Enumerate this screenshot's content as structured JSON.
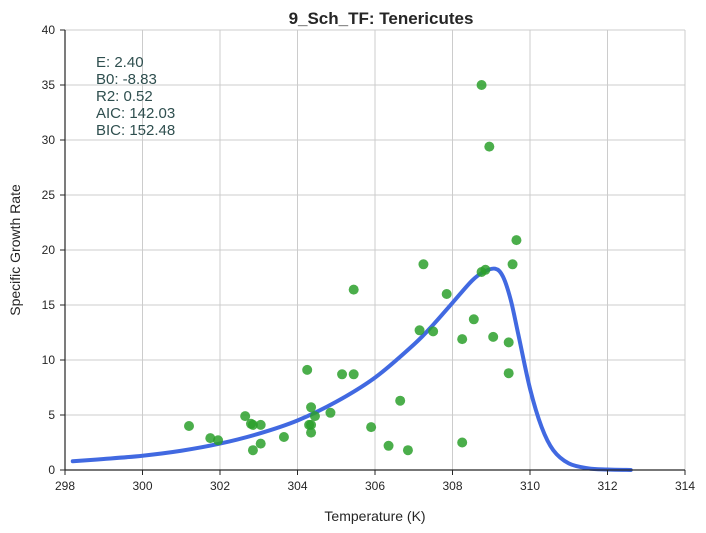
{
  "chart_data": {
    "type": "scatter",
    "title": "9_Sch_TF: Tenericutes",
    "xlabel": "Temperature (K)",
    "ylabel": "Specific Growth Rate",
    "xlim": [
      298,
      314
    ],
    "ylim": [
      0,
      40
    ],
    "xticks": [
      298,
      300,
      302,
      304,
      306,
      308,
      310,
      312,
      314
    ],
    "yticks": [
      0,
      5,
      10,
      15,
      20,
      25,
      30,
      35,
      40
    ],
    "grid": true,
    "stats": [
      "E:  2.40",
      "B0:  -8.83",
      "R2:  0.52",
      "AIC: 142.03",
      "BIC: 152.48"
    ],
    "colors": {
      "points": "#2ca02c",
      "curve": "#4169e1",
      "stats_text": "#2f4f4f",
      "grid": "#cccccc"
    },
    "series": [
      {
        "kind": "points",
        "x": [
          301.2,
          301.75,
          301.95,
          302.65,
          302.8,
          302.85,
          302.85,
          303.05,
          303.05,
          303.65,
          304.25,
          304.3,
          304.35,
          304.35,
          304.35,
          304.45,
          304.85,
          305.15,
          305.45,
          305.45,
          305.9,
          306.35,
          306.65,
          306.85,
          307.15,
          307.25,
          307.5,
          307.85,
          308.25,
          308.25,
          308.55,
          308.75,
          308.75,
          308.85,
          308.95,
          309.05,
          309.45,
          309.45,
          309.55,
          309.65
        ],
        "y": [
          4.0,
          2.9,
          2.7,
          4.9,
          4.2,
          4.1,
          1.8,
          4.1,
          2.4,
          3.0,
          9.1,
          4.1,
          5.7,
          4.1,
          3.4,
          4.9,
          5.2,
          8.7,
          8.7,
          16.4,
          3.9,
          2.2,
          6.3,
          1.8,
          12.7,
          18.7,
          12.6,
          16.0,
          2.5,
          11.9,
          13.7,
          35.0,
          18.0,
          18.2,
          29.4,
          12.1,
          11.6,
          8.8,
          18.7,
          20.9
        ]
      },
      {
        "kind": "fit",
        "x": [
          298.2,
          299,
          300,
          301,
          302,
          303,
          304,
          305,
          306,
          307,
          307.5,
          308,
          308.5,
          308.8,
          309.1,
          309.3,
          309.5,
          309.7,
          310,
          310.3,
          310.6,
          311,
          311.5,
          312,
          312.6
        ],
        "y": [
          0.8,
          1.0,
          1.3,
          1.75,
          2.4,
          3.3,
          4.5,
          6.2,
          8.4,
          11.4,
          13.2,
          15.2,
          17.2,
          18.0,
          18.3,
          17.6,
          15.5,
          12.3,
          7.4,
          3.9,
          1.8,
          0.6,
          0.15,
          0.04,
          0.0
        ]
      }
    ]
  }
}
